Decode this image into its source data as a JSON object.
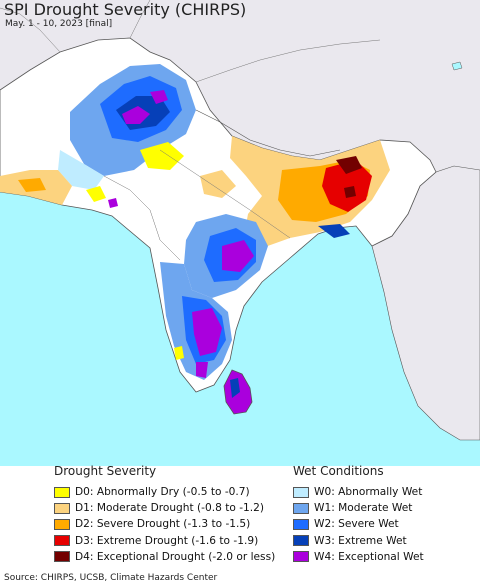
{
  "map": {
    "title": "SPI Drought Severity (CHIRPS)",
    "subtitle": "May. 1 - 10, 2023 [final]",
    "colors": {
      "land": "#ffffff",
      "ocean": "#aaf8ff",
      "outside": "#eae8ee",
      "border": "#555555",
      "d0": "#ffff00",
      "d1": "#fcd37f",
      "d2": "#ffaa00",
      "d3": "#e60000",
      "d4": "#730000",
      "w0": "#bfecff",
      "w1": "#6ea6ef",
      "w2": "#1e6cff",
      "w3": "#0640b8",
      "w4": "#aa00dd"
    }
  },
  "legend": {
    "drought_title": "Drought Severity",
    "wet_title": "Wet Conditions",
    "drought_items": [
      {
        "label": "D0: Abnormally Dry (-0.5 to -0.7)",
        "color": "#ffff00"
      },
      {
        "label": "D1: Moderate Drought (-0.8 to -1.2)",
        "color": "#fcd37f"
      },
      {
        "label": "D2: Severe Drought (-1.3 to -1.5)",
        "color": "#ffaa00"
      },
      {
        "label": "D3: Extreme Drought (-1.6 to -1.9)",
        "color": "#e60000"
      },
      {
        "label": "D4: Exceptional Drought (-2.0 or less)",
        "color": "#730000"
      }
    ],
    "wet_items": [
      {
        "label": "W0: Abnormally Wet",
        "color": "#bfecff"
      },
      {
        "label": "W1: Moderate Wet",
        "color": "#6ea6ef"
      },
      {
        "label": "W2: Severe Wet",
        "color": "#1e6cff"
      },
      {
        "label": "W3: Extreme Wet",
        "color": "#0640b8"
      },
      {
        "label": "W4: Exceptional Wet",
        "color": "#aa00dd"
      }
    ]
  },
  "footer": {
    "source": "Source: CHIRPS, UCSB, Climate Hazards Center"
  }
}
